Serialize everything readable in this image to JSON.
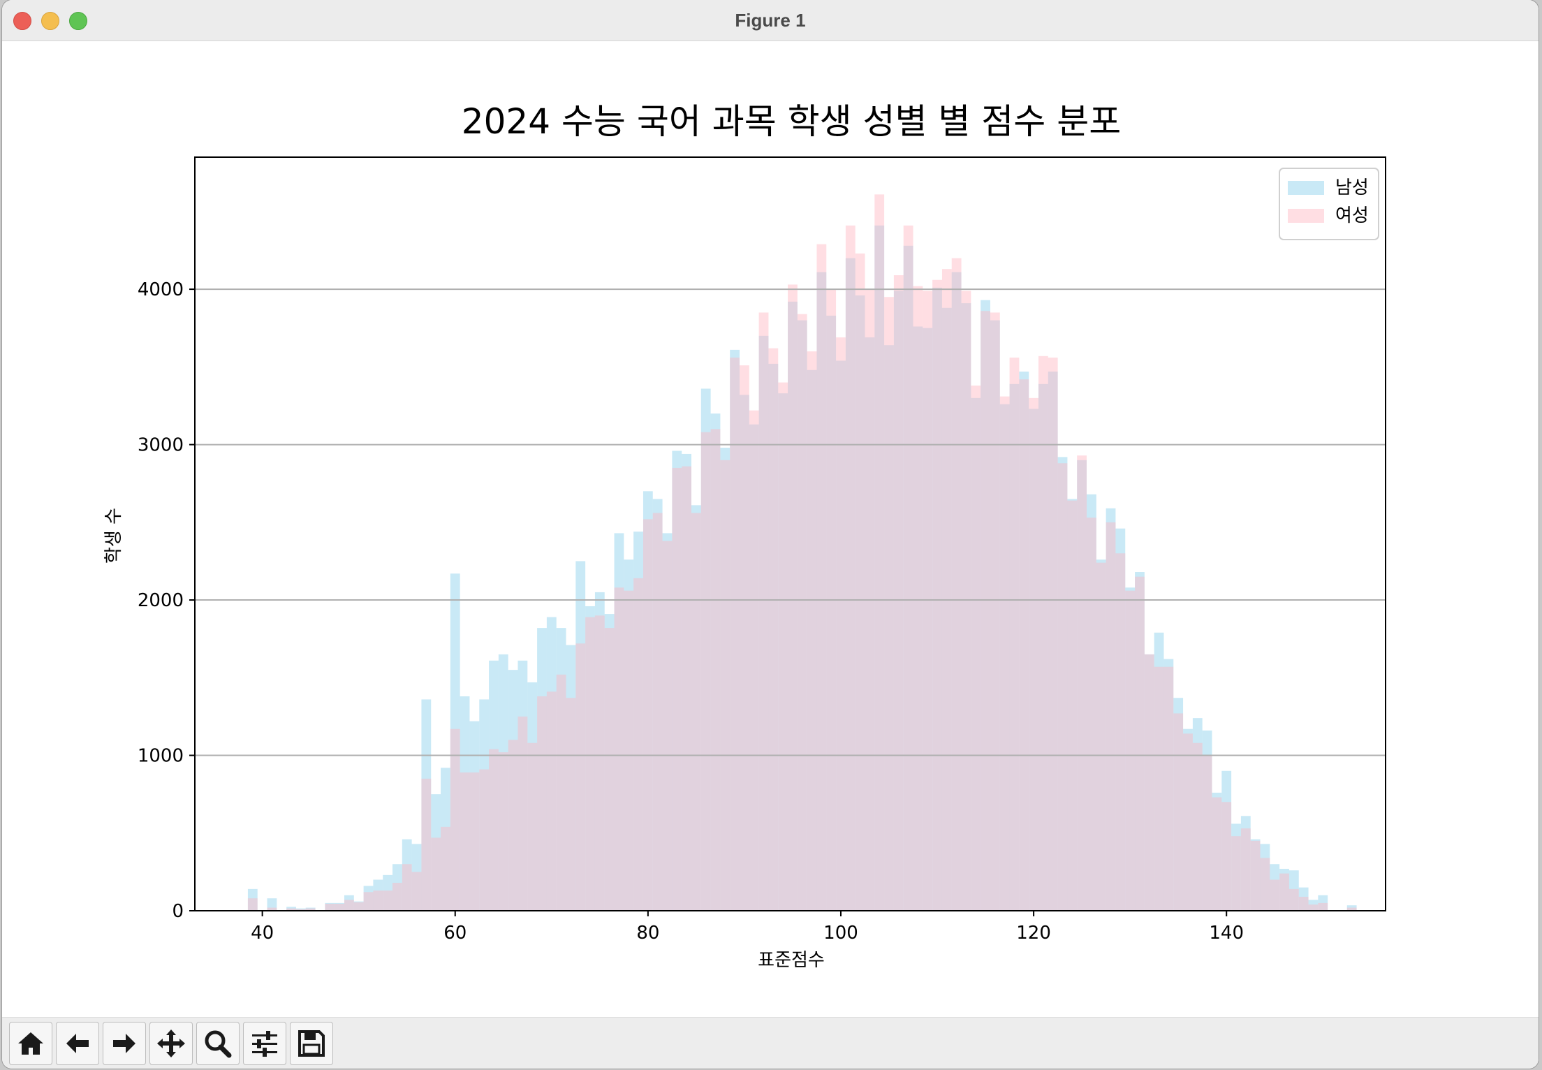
{
  "window": {
    "title": "Figure 1"
  },
  "toolbar": {
    "buttons": [
      {
        "name": "home-icon"
      },
      {
        "name": "back-arrow-icon"
      },
      {
        "name": "forward-arrow-icon"
      },
      {
        "name": "pan-move-icon"
      },
      {
        "name": "zoom-magnifier-icon"
      },
      {
        "name": "configure-subplots-icon"
      },
      {
        "name": "save-floppy-icon"
      }
    ]
  },
  "chart_data": {
    "type": "bar",
    "title": "2024 수능 국어 과목 학생 성별 별 점수 분포",
    "xlabel": "표준점수",
    "ylabel": "학생 수",
    "xlim": [
      33,
      156.5
    ],
    "ylim": [
      0,
      4850
    ],
    "x_ticks": [
      40,
      60,
      80,
      100,
      120,
      140
    ],
    "y_ticks": [
      0,
      1000,
      2000,
      3000,
      4000
    ],
    "grid": "y",
    "legend_position": "top-right",
    "bin_start": 38.5,
    "bin_width": 1,
    "series": [
      {
        "name": "남성",
        "color": "#87ceeb",
        "opacity": 0.45,
        "values": [
          140,
          0,
          80,
          0,
          25,
          15,
          20,
          0,
          50,
          50,
          100,
          60,
          160,
          200,
          230,
          300,
          460,
          430,
          1360,
          750,
          920,
          2170,
          1380,
          1220,
          1360,
          1610,
          1650,
          1550,
          1610,
          1470,
          1820,
          1890,
          1820,
          1710,
          2250,
          1960,
          2050,
          1910,
          2430,
          2260,
          2440,
          2700,
          2650,
          2430,
          2960,
          2940,
          2610,
          3360,
          3200,
          2980,
          3610,
          3320,
          3130,
          3700,
          3520,
          3330,
          3920,
          3800,
          3480,
          4110,
          3830,
          3540,
          4200,
          3960,
          3690,
          4410,
          3640,
          3990,
          4280,
          3760,
          3750,
          4010,
          3880,
          4110,
          3910,
          3300,
          3930,
          3800,
          3260,
          3390,
          3470,
          3230,
          3390,
          3470,
          2920,
          2650,
          2900,
          2680,
          2260,
          2590,
          2460,
          2080,
          2180,
          1650,
          1790,
          1620,
          1370,
          1170,
          1240,
          1160,
          760,
          900,
          560,
          610,
          460,
          430,
          300,
          270,
          260,
          150,
          70,
          100,
          0,
          0,
          35
        ]
      },
      {
        "name": "여성",
        "color": "#ffb6c1",
        "opacity": 0.45,
        "values": [
          80,
          0,
          20,
          0,
          15,
          10,
          15,
          0,
          45,
          45,
          70,
          55,
          120,
          130,
          130,
          180,
          300,
          250,
          850,
          470,
          540,
          1170,
          890,
          890,
          910,
          1040,
          1020,
          1100,
          1250,
          1080,
          1380,
          1410,
          1520,
          1370,
          1720,
          1890,
          1900,
          1820,
          2080,
          2060,
          2140,
          2520,
          2560,
          2380,
          2850,
          2860,
          2560,
          3080,
          3100,
          2900,
          3560,
          3510,
          3220,
          3850,
          3620,
          3400,
          4030,
          3840,
          3600,
          4290,
          4000,
          3690,
          4410,
          4230,
          4000,
          4610,
          3950,
          4090,
          4410,
          4020,
          3990,
          4060,
          4130,
          4200,
          3990,
          3380,
          3860,
          3850,
          3310,
          3560,
          3420,
          3300,
          3570,
          3560,
          2880,
          2640,
          2930,
          2530,
          2240,
          2500,
          2300,
          2060,
          2150,
          1650,
          1570,
          1570,
          1270,
          1140,
          1080,
          1000,
          730,
          700,
          480,
          530,
          450,
          340,
          200,
          240,
          140,
          90,
          40,
          50,
          0,
          0,
          20
        ]
      }
    ]
  }
}
